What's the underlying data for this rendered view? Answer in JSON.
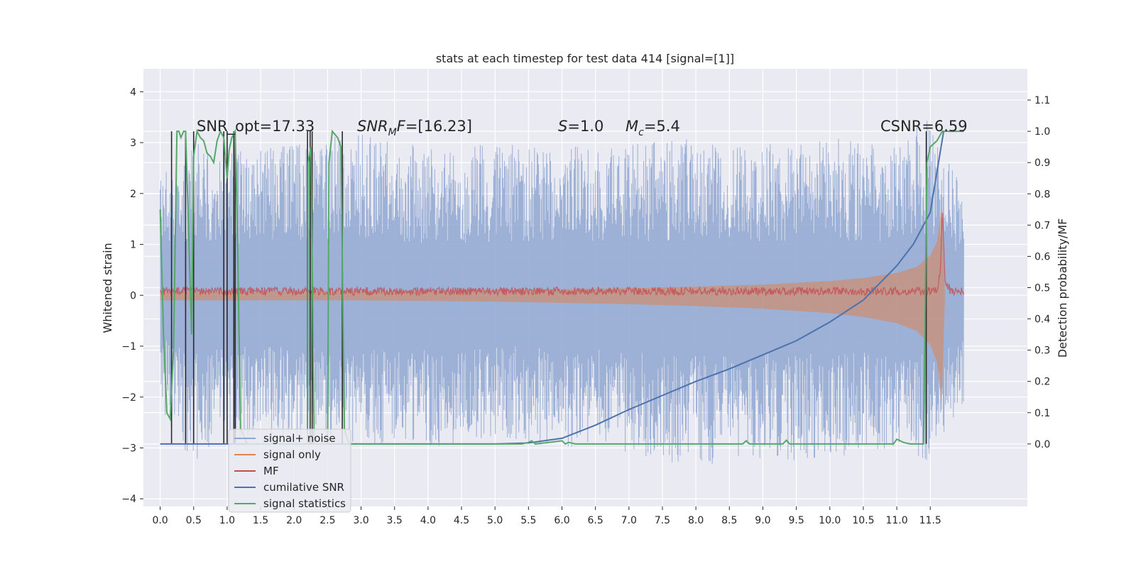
{
  "chart_data": {
    "type": "line",
    "title": "stats at each timestep for test data 414 [signal=[1]]",
    "xlabel": "",
    "ylabel": "Whitened strain",
    "ylabel_right": "Detection probability/MF",
    "xlim": [
      -0.25,
      12.95
    ],
    "ylim": [
      -4.15,
      4.45
    ],
    "ylim_right": [
      -0.2,
      1.2
    ],
    "x_ticks": [
      "0.0",
      "0.5",
      "1.0",
      "1.5",
      "2.0",
      "2.5",
      "3.0",
      "3.5",
      "4.0",
      "4.5",
      "5.0",
      "5.5",
      "6.0",
      "6.5",
      "7.0",
      "7.5",
      "8.0",
      "8.5",
      "9.0",
      "9.5",
      "10.0",
      "10.5",
      "11.0",
      "11.5"
    ],
    "y_ticks": [
      "4",
      "3",
      "2",
      "1",
      "0",
      "−1",
      "−2",
      "−3",
      "−4"
    ],
    "y_ticks_right": [
      "1.1",
      "1.0",
      "0.9",
      "0.8",
      "0.7",
      "0.6",
      "0.5",
      "0.4",
      "0.3",
      "0.2",
      "0.1",
      "0.0"
    ],
    "grid": true,
    "legend_placement": "lower-left",
    "annotations": [
      {
        "id": "snr-opt",
        "text": "SNR_opt=17.33",
        "x": 0.2,
        "y": 3.2
      },
      {
        "id": "snr-mf",
        "text": "=[16.23]",
        "x": 2.6,
        "y": 3.2
      },
      {
        "id": "s-value",
        "text": "=1.0",
        "x": 5.6,
        "y": 3.2
      },
      {
        "id": "mc-value",
        "text": "=5.4",
        "x": 6.6,
        "y": 3.2
      },
      {
        "id": "csnr",
        "text": "CSNR=6.59",
        "x": 10.4,
        "y": 3.2
      }
    ],
    "series": [
      {
        "name": "signal+ noise",
        "color": "#8fa6d0",
        "axis": "left",
        "envelope_x": [
          0,
          0.5,
          1,
          2,
          3,
          4,
          5,
          6,
          7,
          8,
          9,
          10,
          11,
          11.5,
          12
        ],
        "envelope_low": [
          -2.4,
          -3.3,
          -2.9,
          -2.8,
          -2.9,
          -3.0,
          -2.8,
          -3.0,
          -3.1,
          -3.4,
          -3.2,
          -3.3,
          -3.1,
          -3.3,
          -2.2
        ],
        "envelope_high": [
          2.5,
          3.0,
          2.8,
          3.0,
          3.2,
          2.9,
          3.0,
          2.9,
          3.0,
          3.1,
          3.0,
          3.1,
          3.0,
          3.5,
          2.0
        ]
      },
      {
        "name": "signal only",
        "color": "#dd8452",
        "axis": "left",
        "x": [
          0,
          1,
          2,
          3,
          4,
          5,
          6,
          7,
          8,
          9,
          10,
          10.5,
          11,
          11.3,
          11.5,
          11.6,
          11.67,
          11.72
        ],
        "amplitude": [
          0.08,
          0.08,
          0.08,
          0.08,
          0.09,
          0.1,
          0.12,
          0.14,
          0.17,
          0.21,
          0.28,
          0.34,
          0.44,
          0.56,
          0.78,
          1.05,
          1.72,
          0
        ]
      },
      {
        "name": "MF",
        "color": "#c44e52",
        "axis": "left",
        "x": [
          0,
          11.6,
          11.65,
          11.68,
          11.72,
          11.8,
          12
        ],
        "y": [
          0.08,
          0.08,
          0.5,
          1.7,
          0.3,
          0.08,
          0.08
        ]
      },
      {
        "name": "cumilative SNR",
        "color": "#4c72b0",
        "axis": "right",
        "x": [
          0,
          5.0,
          5.5,
          6.0,
          6.5,
          7.0,
          7.5,
          8.0,
          8.5,
          9.0,
          9.5,
          10.0,
          10.5,
          11.0,
          11.25,
          11.5,
          11.7
        ],
        "y": [
          0,
          0,
          0.003,
          0.018,
          0.06,
          0.11,
          0.155,
          0.2,
          0.24,
          0.285,
          0.33,
          0.39,
          0.46,
          0.57,
          0.64,
          0.74,
          1.0
        ]
      },
      {
        "name": "signal statistics",
        "color": "#55a868",
        "axis": "right",
        "x": [
          0,
          0.05,
          0.1,
          0.15,
          0.2,
          0.25,
          0.28,
          0.31,
          0.35,
          0.38,
          0.42,
          0.47,
          0.5,
          0.55,
          0.6,
          0.65,
          0.7,
          0.75,
          0.8,
          0.85,
          0.9,
          0.95,
          1.0,
          1.03,
          1.07,
          1.12,
          1.16,
          1.2,
          1.3,
          2.2,
          2.21,
          2.25,
          2.28,
          2.3,
          2.5,
          2.52,
          2.57,
          2.65,
          2.7,
          2.75,
          2.82,
          3.0,
          5.4,
          5.5,
          5.55,
          5.6,
          5.8,
          6.0,
          6.05,
          6.1,
          6.2,
          8.7,
          8.75,
          8.8,
          9.3,
          9.35,
          9.4,
          10.95,
          11.0,
          11.05,
          11.1,
          11.2,
          11.4,
          11.45,
          11.5,
          11.6,
          11.68,
          12.0
        ],
        "y": [
          0.75,
          0.35,
          0.1,
          0.08,
          0.3,
          1.0,
          1.0,
          0.98,
          1.0,
          1.0,
          0.72,
          0.35,
          0.92,
          1.0,
          0.98,
          0.97,
          0.93,
          0.92,
          0.9,
          0.97,
          1.0,
          0.98,
          0.85,
          0.94,
          0.98,
          1.0,
          0.6,
          0.05,
          0.0,
          0.0,
          0.9,
          0.95,
          0.4,
          0.0,
          0.0,
          0.9,
          1.0,
          0.98,
          0.95,
          0.05,
          0.0,
          0.0,
          0.0,
          0.005,
          0.01,
          0.0,
          0.005,
          0.01,
          0.0,
          0.005,
          0.0,
          0.0,
          0.01,
          0.0,
          0.0,
          0.012,
          0.0,
          0.0,
          0.015,
          0.01,
          0.005,
          0.0,
          0.0,
          0.9,
          0.95,
          0.97,
          1.0,
          1.0
        ]
      }
    ],
    "detection_markers": {
      "color": "#2b2b2b",
      "x": [
        0.17,
        0.38,
        0.5,
        0.95,
        1.0,
        1.1,
        1.12,
        2.2,
        2.24,
        2.27,
        2.72,
        11.44
      ]
    }
  }
}
